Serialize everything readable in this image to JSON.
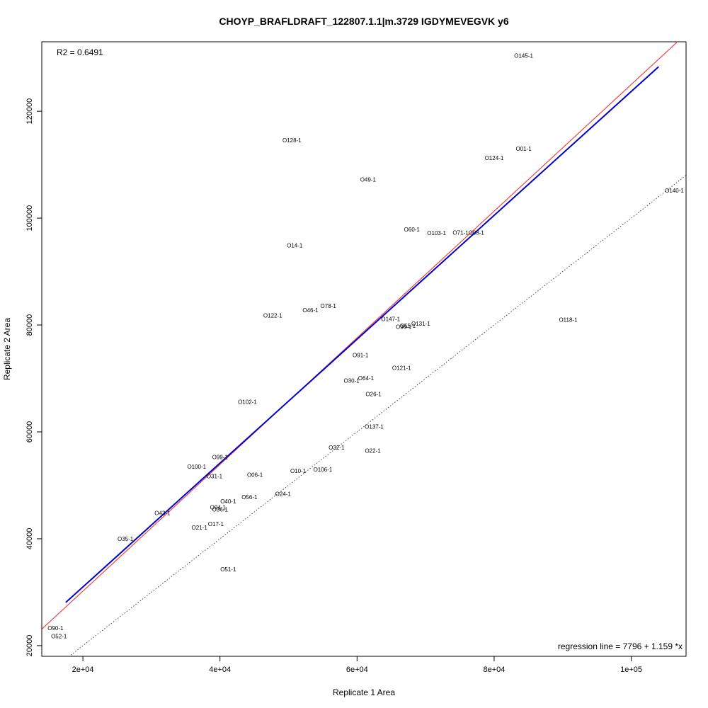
{
  "chart_data": {
    "type": "scatter",
    "title": "CHOYP_BRAFLDRAFT_122807.1.1|m.3729 IGDYMEVEGVK y6",
    "xlabel": "Replicate 1 Area",
    "ylabel": "Replicate 2 Area",
    "xlim": [
      14000,
      108000
    ],
    "ylim": [
      18000,
      133000
    ],
    "x_ticks": [
      20000,
      40000,
      60000,
      80000,
      100000
    ],
    "x_tick_labels": [
      "2e+04",
      "4e+04",
      "6e+04",
      "8e+04",
      "1e+05"
    ],
    "y_ticks": [
      20000,
      40000,
      60000,
      80000,
      100000,
      120000
    ],
    "y_tick_labels": [
      "20000",
      "40000",
      "60000",
      "80000",
      "100000",
      "120000"
    ],
    "r2_text": "R2 = 0.6491",
    "regression_text": "regression line = 7796 + 1.159 *x",
    "regression": {
      "intercept": 7796,
      "slope": 1.159,
      "x_range": [
        17500,
        104000
      ],
      "color": "#0000cc"
    },
    "reference_line": {
      "intercept": 6500,
      "slope": 1.185,
      "color": "#ee4444"
    },
    "identity_line": {
      "intercept": 0,
      "slope": 1,
      "style": "dotted",
      "color": "#444444"
    },
    "points": [
      {
        "label": "O145-1",
        "x": 84300,
        "y": 130400
      },
      {
        "label": "O128-1",
        "x": 50500,
        "y": 114600
      },
      {
        "label": "O01-1",
        "x": 84300,
        "y": 113000
      },
      {
        "label": "O124-1",
        "x": 80000,
        "y": 111300
      },
      {
        "label": "O49-1",
        "x": 61600,
        "y": 107200
      },
      {
        "label": "O140-1",
        "x": 106300,
        "y": 105200
      },
      {
        "label": "O60-1",
        "x": 68000,
        "y": 97900
      },
      {
        "label": "O103-1",
        "x": 71600,
        "y": 97200
      },
      {
        "label": "O71-1",
        "x": 75100,
        "y": 97300
      },
      {
        "label": "O08-1",
        "x": 77400,
        "y": 97300
      },
      {
        "label": "O14-1",
        "x": 50900,
        "y": 94900
      },
      {
        "label": "O78-1",
        "x": 55800,
        "y": 83600
      },
      {
        "label": "O46-1",
        "x": 53200,
        "y": 82800
      },
      {
        "label": "O122-1",
        "x": 47700,
        "y": 81800
      },
      {
        "label": "O147-1",
        "x": 64900,
        "y": 81100
      },
      {
        "label": "O118-1",
        "x": 90800,
        "y": 81000
      },
      {
        "label": "O131-1",
        "x": 69300,
        "y": 80300
      },
      {
        "label": "O55-1",
        "x": 67400,
        "y": 79900
      },
      {
        "label": "O96-1",
        "x": 66800,
        "y": 79700
      },
      {
        "label": "O91-1",
        "x": 60500,
        "y": 74400
      },
      {
        "label": "O121-1",
        "x": 66500,
        "y": 72000
      },
      {
        "label": "O64-1",
        "x": 61300,
        "y": 70100
      },
      {
        "label": "O30-1",
        "x": 59200,
        "y": 69600
      },
      {
        "label": "O26-1",
        "x": 62400,
        "y": 67100
      },
      {
        "label": "O102-1",
        "x": 44000,
        "y": 65600
      },
      {
        "label": "O137-1",
        "x": 62500,
        "y": 61000
      },
      {
        "label": "O32-1",
        "x": 57000,
        "y": 57100
      },
      {
        "label": "O22-1",
        "x": 62300,
        "y": 56500
      },
      {
        "label": "O99-1",
        "x": 40000,
        "y": 55300
      },
      {
        "label": "O100-1",
        "x": 36600,
        "y": 53500
      },
      {
        "label": "O106-1",
        "x": 55000,
        "y": 53000
      },
      {
        "label": "O10-1",
        "x": 51400,
        "y": 52700
      },
      {
        "label": "O06-1",
        "x": 45100,
        "y": 52000
      },
      {
        "label": "O31-1",
        "x": 39200,
        "y": 51700
      },
      {
        "label": "O24-1",
        "x": 49200,
        "y": 48400
      },
      {
        "label": "O56-1",
        "x": 44300,
        "y": 47800
      },
      {
        "label": "O40-1",
        "x": 41200,
        "y": 47000
      },
      {
        "label": "O43-1",
        "x": 31600,
        "y": 44800
      },
      {
        "label": "O94-1",
        "x": 39700,
        "y": 45900
      },
      {
        "label": "O36-1",
        "x": 40000,
        "y": 45500
      },
      {
        "label": "O17-1",
        "x": 39400,
        "y": 42800
      },
      {
        "label": "O21-1",
        "x": 37000,
        "y": 42100
      },
      {
        "label": "O35-1",
        "x": 26200,
        "y": 40000
      },
      {
        "label": "O51-1",
        "x": 41200,
        "y": 34300
      },
      {
        "label": "O90-1",
        "x": 16000,
        "y": 23300
      },
      {
        "label": "O52-1",
        "x": 16500,
        "y": 21800
      }
    ]
  }
}
